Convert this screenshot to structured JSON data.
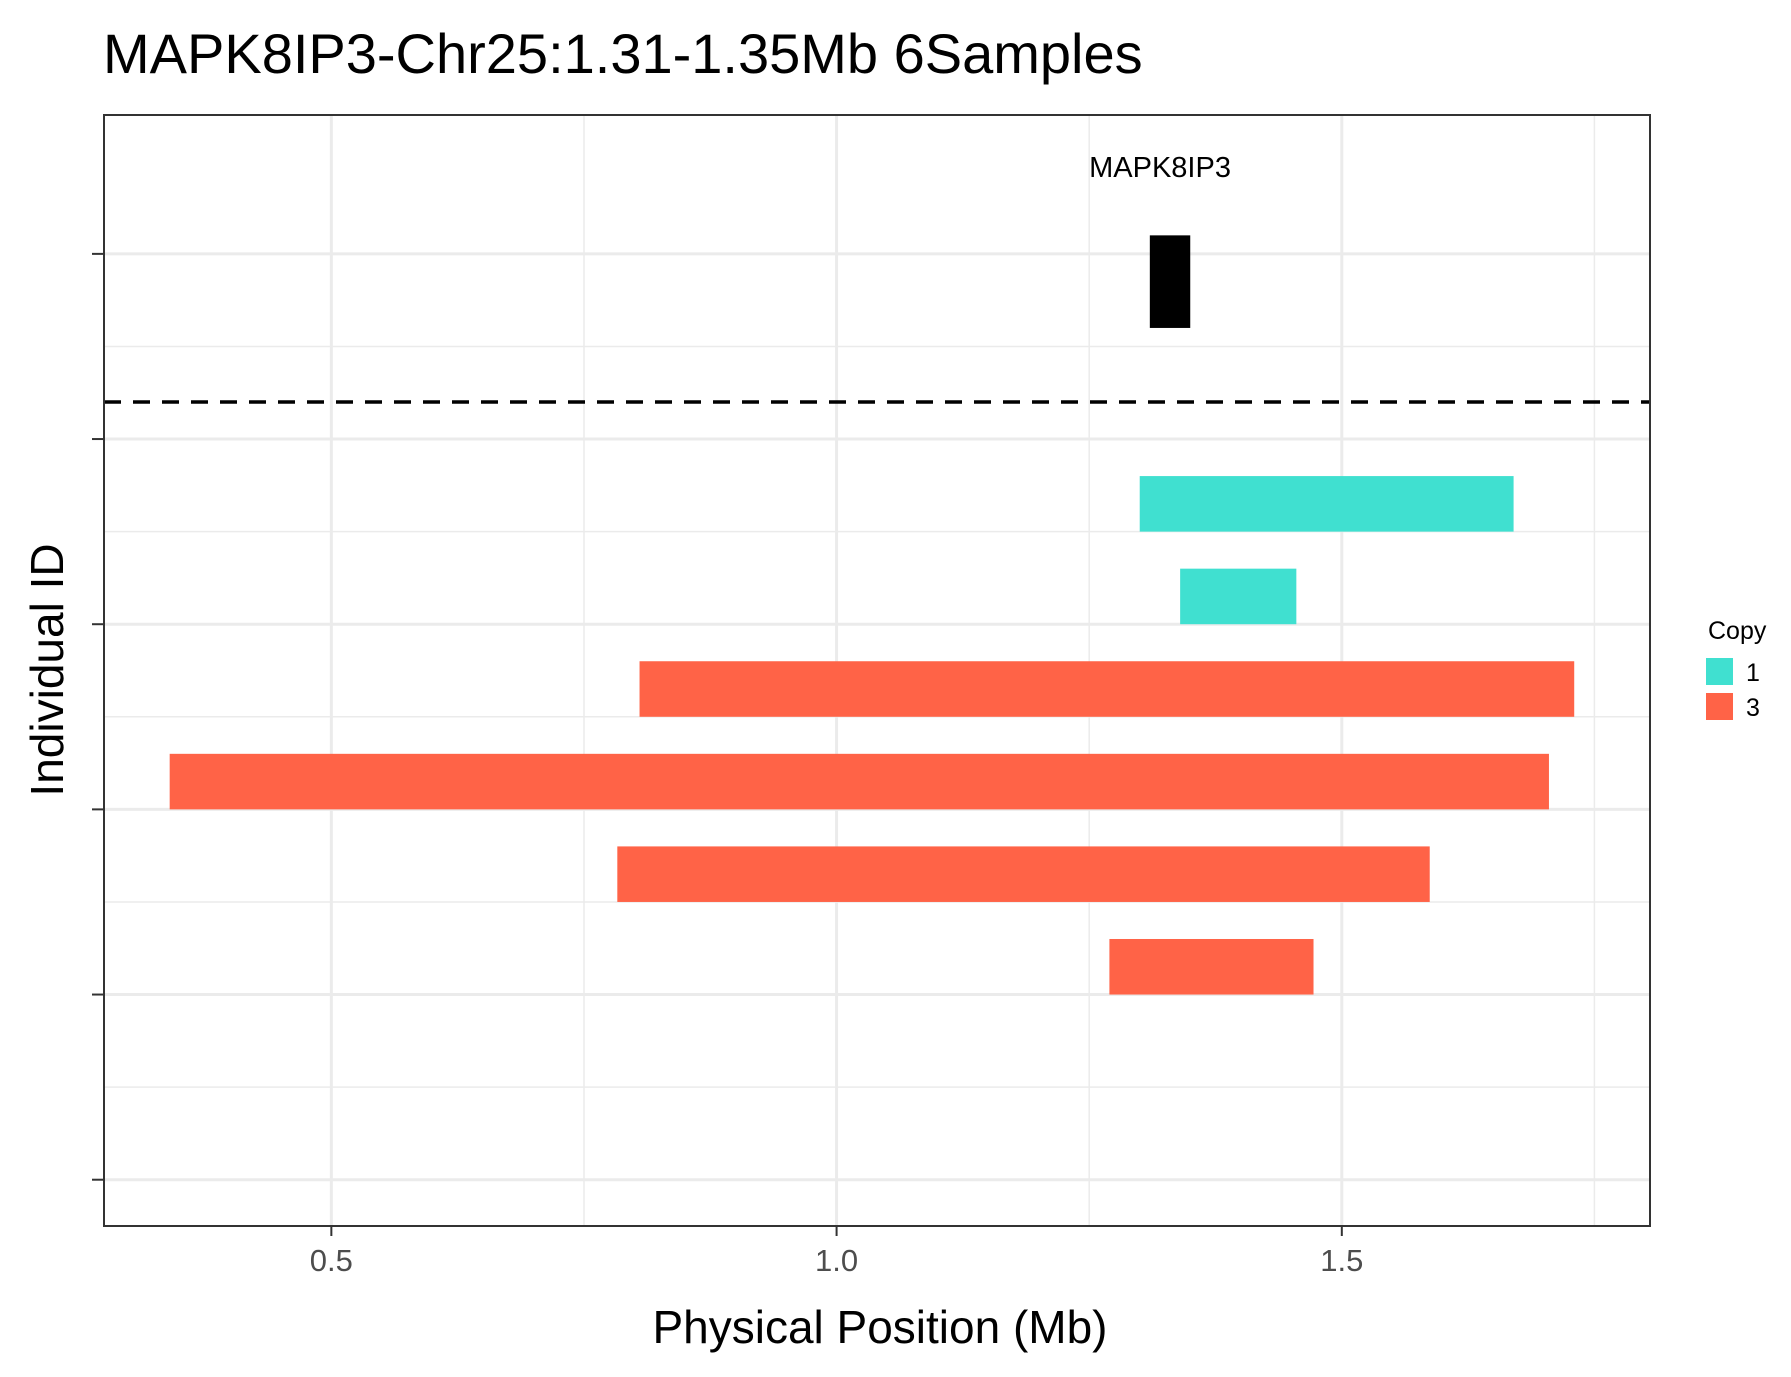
{
  "chart_data": {
    "type": "bar",
    "orientation": "horizontal-segments",
    "title": "MAPK8IP3-Chr25:1.31-1.35Mb 6Samples",
    "xlabel": "Physical Position (Mb)",
    "ylabel": "Individual ID",
    "xlim": [
      0.275,
      1.805
    ],
    "x_ticks": [
      {
        "value": 0.5,
        "label": "0.5"
      },
      {
        "value": 1.0,
        "label": "1.0"
      },
      {
        "value": 1.5,
        "label": "1.5"
      }
    ],
    "ylim": [
      0.75,
      6.75
    ],
    "y_tick_count": 6,
    "grid": true,
    "gene": {
      "name": "MAPK8IP3",
      "start": 1.31,
      "end": 1.35,
      "y_low": 5.6,
      "y_high": 6.1
    },
    "separator_y": 5.2,
    "segments": [
      {
        "start": 1.3,
        "end": 1.67,
        "copy": "1",
        "y_low": 4.5,
        "y_high": 4.8
      },
      {
        "start": 1.34,
        "end": 1.455,
        "copy": "1",
        "y_low": 4.0,
        "y_high": 4.3
      },
      {
        "start": 0.805,
        "end": 1.73,
        "copy": "3",
        "y_low": 3.5,
        "y_high": 3.8
      },
      {
        "start": 0.34,
        "end": 1.705,
        "copy": "3",
        "y_low": 3.0,
        "y_high": 3.3
      },
      {
        "start": 0.783,
        "end": 1.587,
        "copy": "3",
        "y_low": 2.5,
        "y_high": 2.8
      },
      {
        "start": 1.27,
        "end": 1.472,
        "copy": "3",
        "y_low": 2.0,
        "y_high": 2.3
      }
    ],
    "legend": {
      "title": "Copy",
      "position": "right",
      "items": [
        {
          "label": "1",
          "color": "#40E0D0"
        },
        {
          "label": "3",
          "color": "#FF6347"
        }
      ]
    }
  }
}
